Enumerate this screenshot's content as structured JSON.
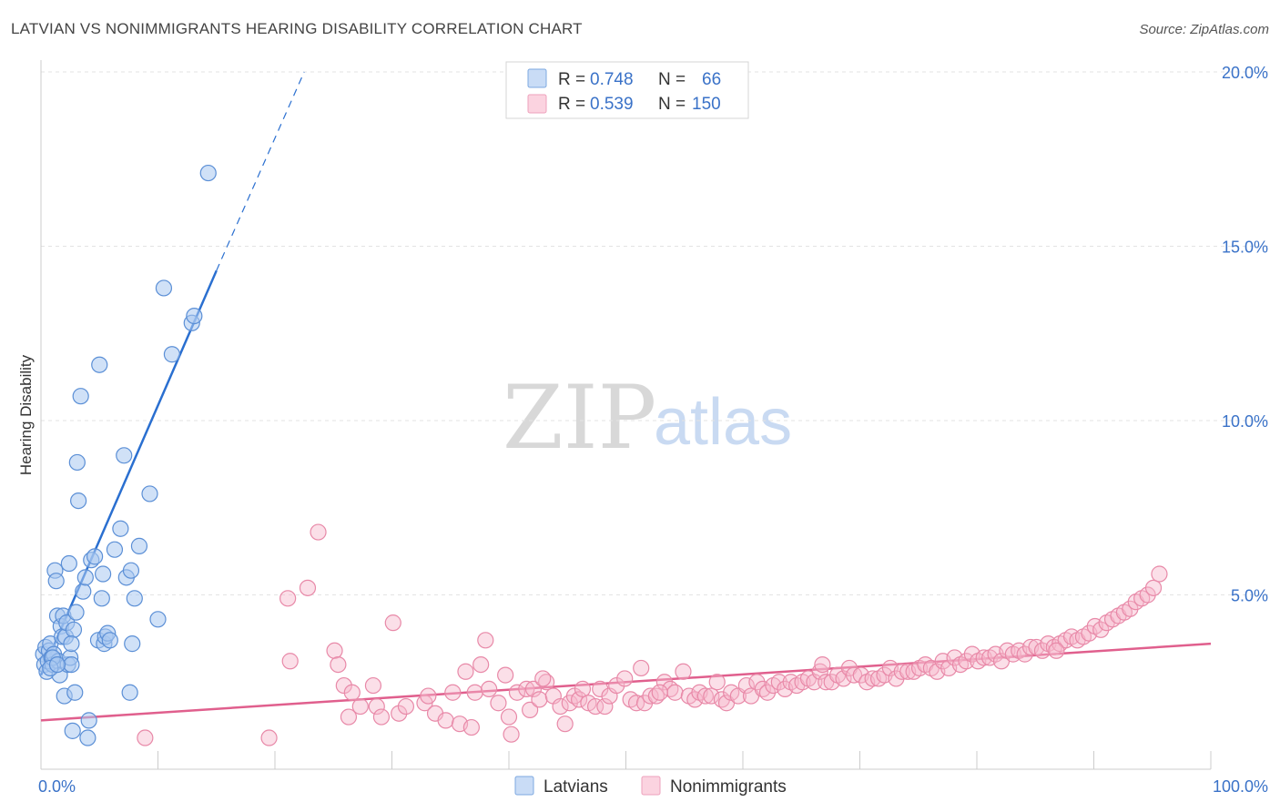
{
  "header": {
    "title": "LATVIAN VS NONIMMIGRANTS HEARING DISABILITY CORRELATION CHART",
    "source": "Source: ZipAtlas.com"
  },
  "legend": {
    "rows": [
      {
        "r_label": "R =",
        "r_value": "0.748",
        "n_label": "N =",
        "n_value": "66",
        "color": "#a9c8f0"
      },
      {
        "r_label": "R =",
        "r_value": "0.539",
        "n_label": "N =",
        "n_value": "150",
        "color": "#f7b9cd"
      }
    ]
  },
  "bottom_legend": {
    "items": [
      {
        "label": "Latvians",
        "color": "#a9c8f0"
      },
      {
        "label": "Nonimmigrants",
        "color": "#f7b9cd"
      }
    ]
  },
  "watermark": {
    "zip": "ZIP",
    "atlas": "atlas"
  },
  "chart_data": {
    "type": "scatter",
    "title": "LATVIAN VS NONIMMIGRANTS HEARING DISABILITY CORRELATION CHART",
    "xlabel": "",
    "ylabel": "Hearing Disability",
    "xlim": [
      0,
      100
    ],
    "ylim": [
      0,
      20
    ],
    "x_tick_labels": [
      "0.0%",
      "100.0%"
    ],
    "y_ticks": [
      5,
      10,
      15,
      20
    ],
    "y_tick_labels": [
      "5.0%",
      "10.0%",
      "15.0%",
      "20.0%"
    ],
    "grid": true,
    "colors": {
      "latvians": "#5b8fd6",
      "nonimmigrants": "#e889a8",
      "latvians_line": "#2a6fd0",
      "nonimmigrants_line": "#e05f8d"
    },
    "series": [
      {
        "name": "Latvians",
        "points": [
          [
            0.2,
            3.3
          ],
          [
            0.3,
            3.0
          ],
          [
            0.4,
            3.5
          ],
          [
            0.5,
            2.8
          ],
          [
            0.6,
            3.1
          ],
          [
            0.7,
            3.4
          ],
          [
            0.8,
            3.6
          ],
          [
            0.9,
            3.2
          ],
          [
            1.0,
            3.0
          ],
          [
            1.1,
            3.3
          ],
          [
            1.2,
            5.7
          ],
          [
            1.3,
            5.4
          ],
          [
            1.4,
            4.4
          ],
          [
            1.5,
            3.1
          ],
          [
            1.6,
            2.7
          ],
          [
            1.7,
            4.1
          ],
          [
            1.8,
            3.8
          ],
          [
            1.9,
            4.4
          ],
          [
            2.0,
            2.1
          ],
          [
            2.1,
            3.8
          ],
          [
            2.2,
            4.2
          ],
          [
            2.3,
            3.0
          ],
          [
            2.4,
            5.9
          ],
          [
            2.5,
            3.2
          ],
          [
            2.6,
            3.0
          ],
          [
            2.7,
            1.1
          ],
          [
            2.8,
            4.0
          ],
          [
            2.9,
            2.2
          ],
          [
            3.0,
            4.5
          ],
          [
            3.1,
            8.8
          ],
          [
            3.2,
            7.7
          ],
          [
            3.4,
            10.7
          ],
          [
            3.6,
            5.1
          ],
          [
            3.8,
            5.5
          ],
          [
            4.0,
            0.9
          ],
          [
            4.1,
            1.4
          ],
          [
            4.3,
            6.0
          ],
          [
            4.6,
            6.1
          ],
          [
            4.9,
            3.7
          ],
          [
            5.0,
            11.6
          ],
          [
            5.2,
            4.9
          ],
          [
            5.3,
            5.6
          ],
          [
            5.4,
            3.6
          ],
          [
            5.5,
            3.8
          ],
          [
            5.7,
            3.9
          ],
          [
            5.9,
            3.7
          ],
          [
            6.3,
            6.3
          ],
          [
            6.8,
            6.9
          ],
          [
            7.1,
            9.0
          ],
          [
            7.3,
            5.5
          ],
          [
            7.6,
            2.2
          ],
          [
            7.7,
            5.7
          ],
          [
            7.8,
            3.6
          ],
          [
            8.0,
            4.9
          ],
          [
            8.4,
            6.4
          ],
          [
            9.3,
            7.9
          ],
          [
            10.0,
            4.3
          ],
          [
            10.5,
            13.8
          ],
          [
            11.2,
            11.9
          ],
          [
            12.9,
            12.8
          ],
          [
            13.1,
            13.0
          ],
          [
            14.3,
            17.1
          ],
          [
            1.0,
            3.2
          ],
          [
            0.8,
            2.9
          ],
          [
            1.4,
            3.0
          ],
          [
            2.6,
            3.6
          ]
        ]
      },
      {
        "name": "Nonimmigrants",
        "points": [
          [
            8.9,
            0.9
          ],
          [
            19.5,
            0.9
          ],
          [
            21.1,
            4.9
          ],
          [
            21.3,
            3.1
          ],
          [
            23.7,
            6.8
          ],
          [
            25.1,
            3.4
          ],
          [
            25.4,
            3.0
          ],
          [
            25.9,
            2.4
          ],
          [
            26.3,
            1.5
          ],
          [
            26.6,
            2.2
          ],
          [
            27.3,
            1.8
          ],
          [
            28.4,
            2.4
          ],
          [
            28.7,
            1.8
          ],
          [
            29.1,
            1.5
          ],
          [
            30.1,
            4.2
          ],
          [
            30.6,
            1.6
          ],
          [
            31.2,
            1.8
          ],
          [
            32.8,
            1.9
          ],
          [
            33.7,
            1.6
          ],
          [
            34.6,
            1.4
          ],
          [
            35.2,
            2.2
          ],
          [
            35.8,
            1.3
          ],
          [
            36.3,
            2.8
          ],
          [
            37.1,
            2.2
          ],
          [
            37.6,
            3.0
          ],
          [
            38.0,
            3.7
          ],
          [
            38.3,
            2.3
          ],
          [
            39.1,
            1.9
          ],
          [
            39.7,
            2.7
          ],
          [
            40.0,
            1.5
          ],
          [
            40.2,
            1.0
          ],
          [
            40.7,
            2.2
          ],
          [
            41.5,
            2.3
          ],
          [
            41.8,
            1.7
          ],
          [
            42.1,
            2.3
          ],
          [
            42.6,
            2.0
          ],
          [
            43.2,
            2.5
          ],
          [
            43.8,
            2.1
          ],
          [
            44.4,
            1.8
          ],
          [
            44.8,
            1.3
          ],
          [
            45.2,
            1.9
          ],
          [
            45.6,
            2.1
          ],
          [
            46.0,
            2.0
          ],
          [
            46.3,
            2.3
          ],
          [
            46.8,
            1.9
          ],
          [
            47.4,
            1.8
          ],
          [
            47.8,
            2.3
          ],
          [
            48.2,
            1.8
          ],
          [
            48.6,
            2.1
          ],
          [
            49.2,
            2.4
          ],
          [
            49.9,
            2.6
          ],
          [
            50.4,
            2.0
          ],
          [
            50.9,
            1.9
          ],
          [
            51.3,
            2.9
          ],
          [
            51.6,
            1.9
          ],
          [
            52.1,
            2.1
          ],
          [
            52.6,
            2.1
          ],
          [
            53.3,
            2.5
          ],
          [
            53.8,
            2.3
          ],
          [
            54.2,
            2.2
          ],
          [
            54.9,
            2.8
          ],
          [
            55.4,
            2.1
          ],
          [
            55.9,
            2.0
          ],
          [
            56.3,
            2.2
          ],
          [
            56.8,
            2.1
          ],
          [
            57.3,
            2.1
          ],
          [
            57.8,
            2.5
          ],
          [
            58.2,
            2.0
          ],
          [
            58.6,
            1.9
          ],
          [
            59.0,
            2.2
          ],
          [
            59.6,
            2.1
          ],
          [
            60.3,
            2.4
          ],
          [
            60.7,
            2.1
          ],
          [
            61.2,
            2.5
          ],
          [
            61.7,
            2.3
          ],
          [
            62.1,
            2.2
          ],
          [
            62.6,
            2.4
          ],
          [
            63.1,
            2.5
          ],
          [
            63.6,
            2.3
          ],
          [
            64.1,
            2.5
          ],
          [
            64.6,
            2.4
          ],
          [
            65.1,
            2.5
          ],
          [
            65.6,
            2.6
          ],
          [
            66.1,
            2.5
          ],
          [
            66.6,
            2.8
          ],
          [
            67.1,
            2.5
          ],
          [
            67.6,
            2.5
          ],
          [
            68.1,
            2.7
          ],
          [
            68.6,
            2.6
          ],
          [
            69.1,
            2.9
          ],
          [
            69.5,
            2.7
          ],
          [
            70.1,
            2.7
          ],
          [
            70.6,
            2.5
          ],
          [
            71.1,
            2.6
          ],
          [
            71.6,
            2.6
          ],
          [
            72.1,
            2.7
          ],
          [
            72.6,
            2.9
          ],
          [
            73.1,
            2.6
          ],
          [
            73.6,
            2.8
          ],
          [
            74.1,
            2.8
          ],
          [
            74.6,
            2.8
          ],
          [
            75.1,
            2.9
          ],
          [
            75.6,
            3.0
          ],
          [
            76.1,
            2.9
          ],
          [
            76.6,
            2.8
          ],
          [
            77.1,
            3.1
          ],
          [
            77.6,
            2.9
          ],
          [
            78.1,
            3.2
          ],
          [
            78.6,
            3.0
          ],
          [
            79.1,
            3.1
          ],
          [
            79.6,
            3.3
          ],
          [
            80.1,
            3.1
          ],
          [
            80.6,
            3.2
          ],
          [
            81.1,
            3.2
          ],
          [
            81.6,
            3.3
          ],
          [
            82.1,
            3.1
          ],
          [
            82.6,
            3.4
          ],
          [
            83.1,
            3.3
          ],
          [
            83.6,
            3.4
          ],
          [
            84.1,
            3.3
          ],
          [
            84.6,
            3.5
          ],
          [
            85.1,
            3.5
          ],
          [
            85.6,
            3.4
          ],
          [
            86.1,
            3.6
          ],
          [
            86.6,
            3.5
          ],
          [
            87.1,
            3.6
          ],
          [
            87.6,
            3.7
          ],
          [
            88.1,
            3.8
          ],
          [
            88.6,
            3.7
          ],
          [
            89.1,
            3.8
          ],
          [
            89.6,
            3.9
          ],
          [
            90.1,
            4.1
          ],
          [
            90.6,
            4.0
          ],
          [
            91.1,
            4.2
          ],
          [
            91.6,
            4.3
          ],
          [
            92.1,
            4.4
          ],
          [
            92.6,
            4.5
          ],
          [
            93.1,
            4.6
          ],
          [
            93.6,
            4.8
          ],
          [
            94.1,
            4.9
          ],
          [
            94.6,
            5.0
          ],
          [
            95.1,
            5.2
          ],
          [
            95.6,
            5.6
          ],
          [
            22.8,
            5.2
          ],
          [
            33.1,
            2.1
          ],
          [
            36.8,
            1.2
          ],
          [
            42.9,
            2.6
          ],
          [
            52.9,
            2.2
          ],
          [
            66.8,
            3.0
          ],
          [
            86.8,
            3.4
          ]
        ]
      }
    ],
    "trendlines": [
      {
        "series": "Latvians",
        "start": [
          0,
          2.7
        ],
        "solid_end": [
          15,
          14.3
        ],
        "dashed_end": [
          22.5,
          20.0
        ]
      },
      {
        "series": "Nonimmigrants",
        "start": [
          0,
          1.4
        ],
        "end": [
          100,
          3.6
        ]
      }
    ]
  }
}
